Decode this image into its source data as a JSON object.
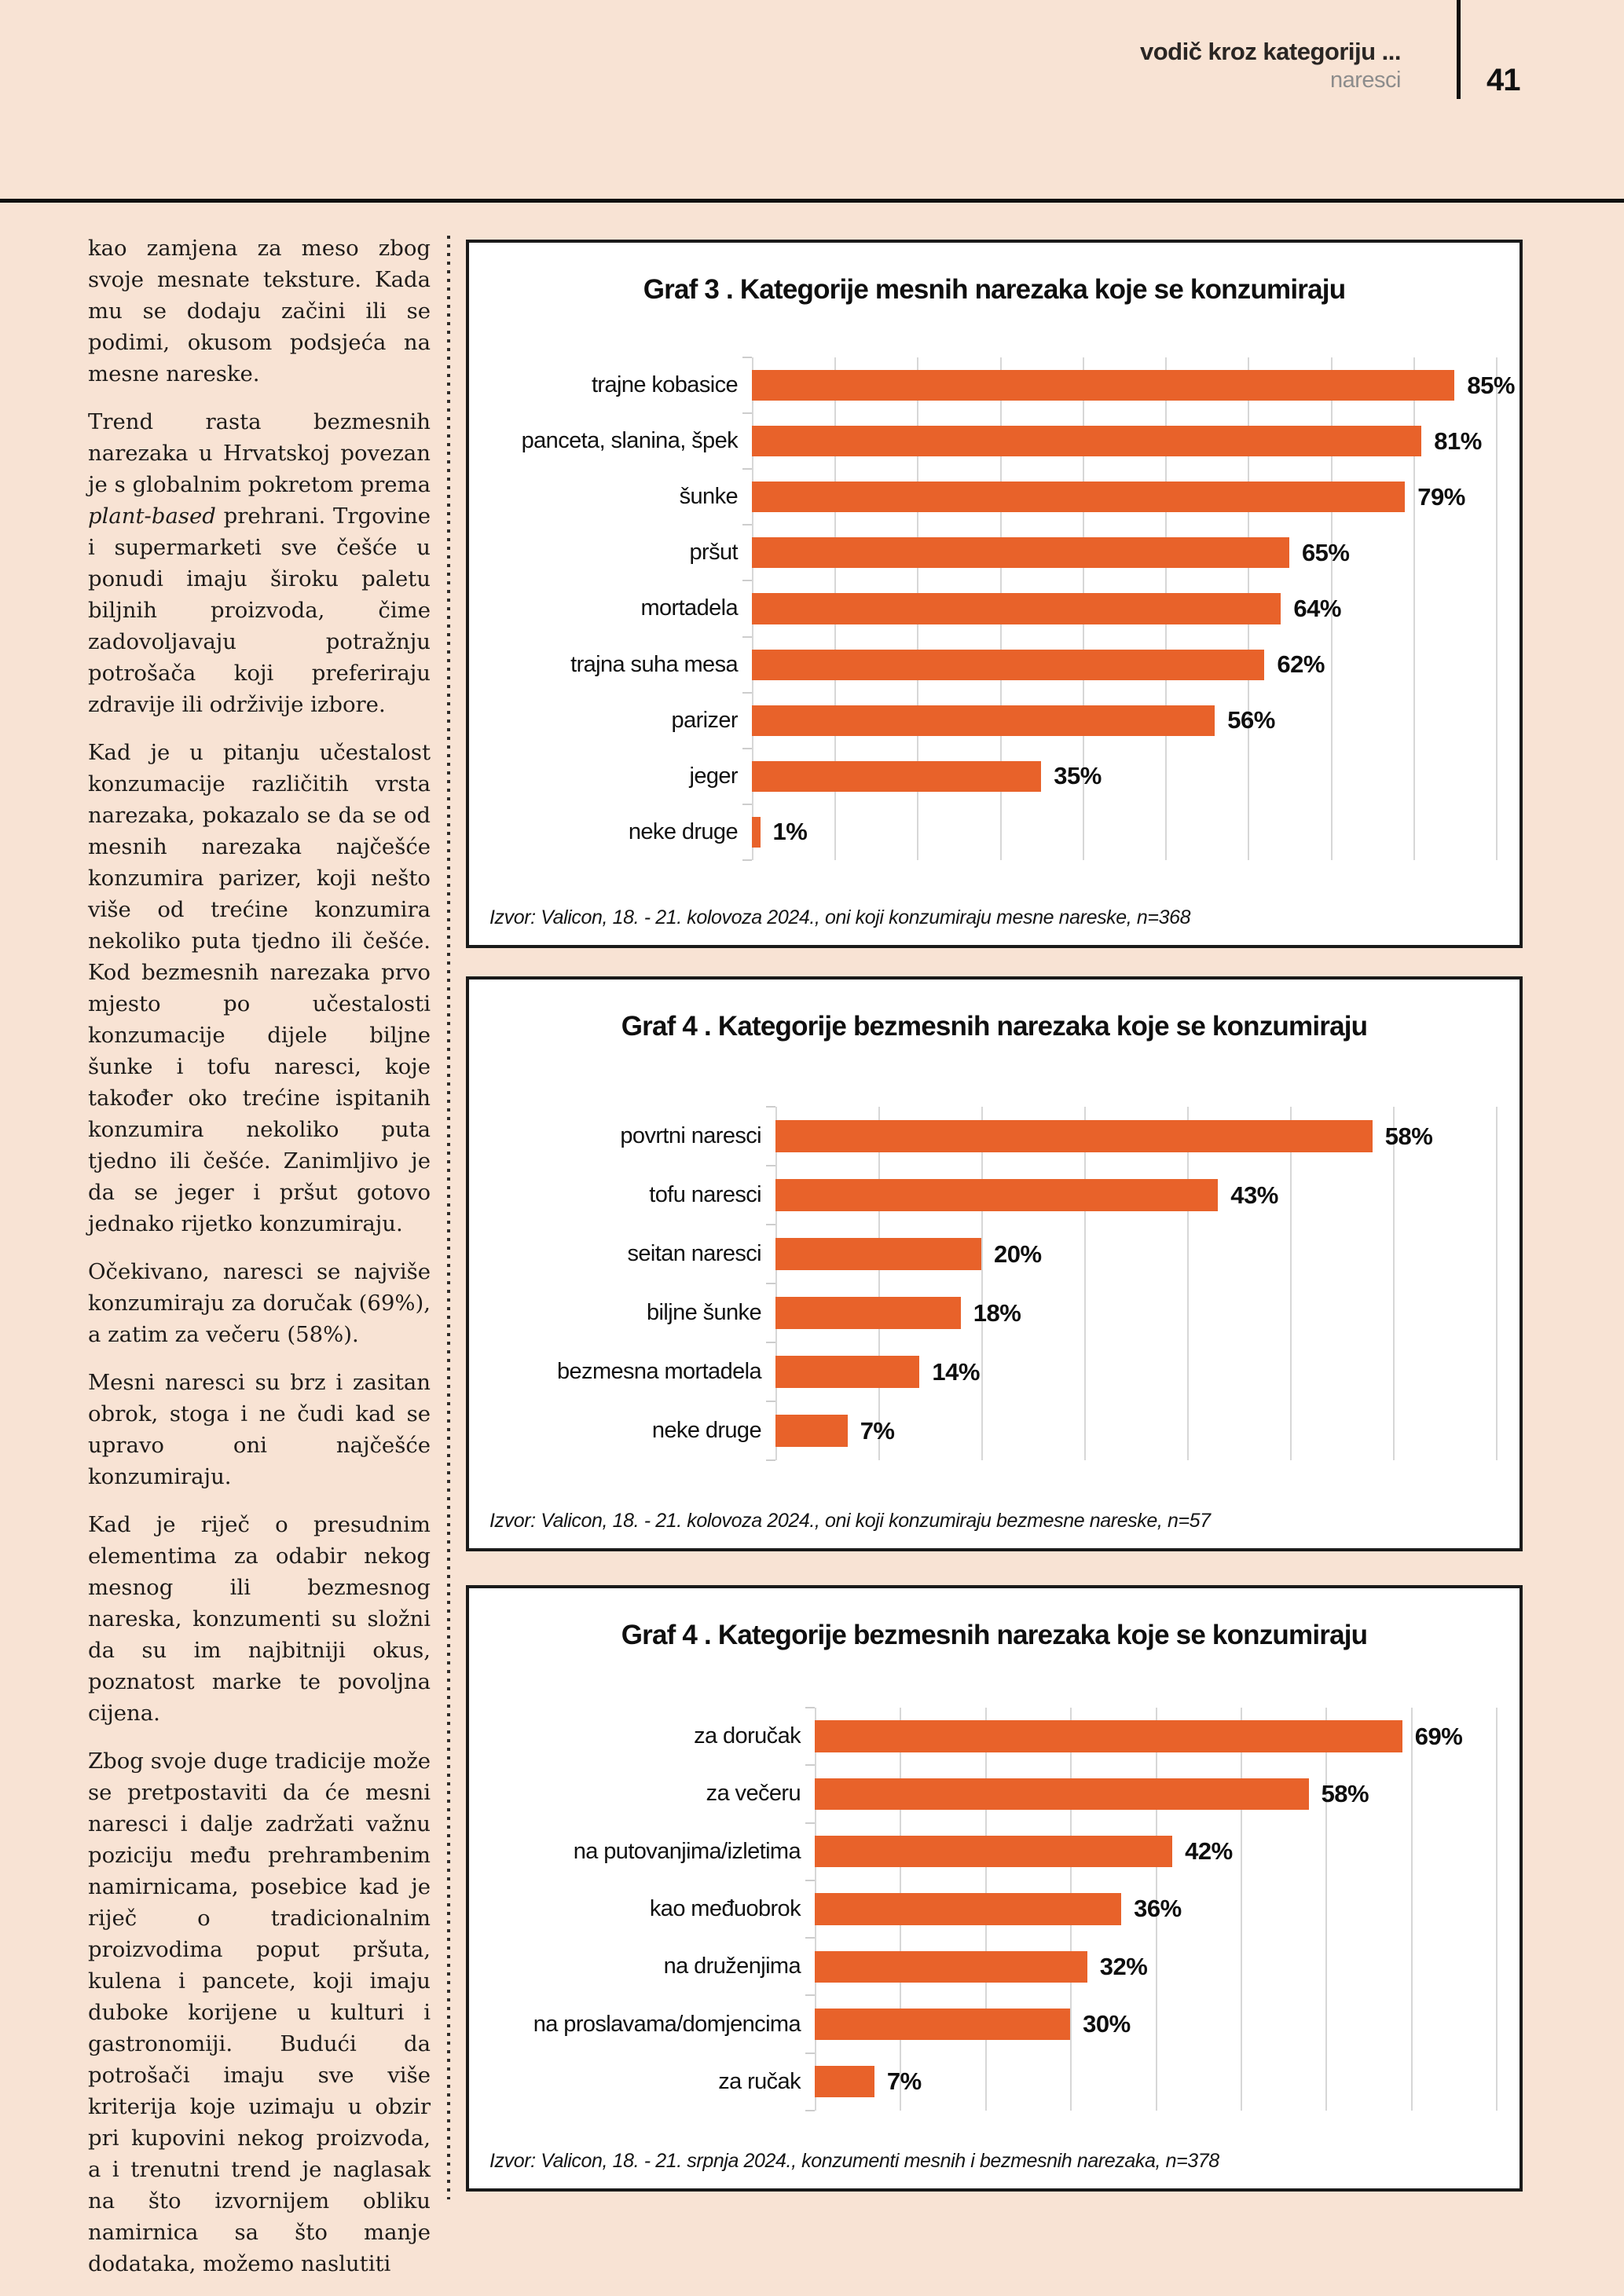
{
  "header": {
    "title": "vodič kroz kategoriju ...",
    "subtitle": "naresci",
    "page_number": "41"
  },
  "colors": {
    "page_background": "#F8E3D4",
    "bar_orange": "#E8622A",
    "chart_border": "#1A1A1A",
    "gridline": "#D7D7D7",
    "subtitle_grey": "#8C8C8C"
  },
  "article": {
    "p1": "kao zamjena za meso zbog svoje mesnate teksture. Kada mu se dodaju začini ili se podimi, okusom podsjeća na mesne nareske.",
    "p2_before": "Trend rasta bezmesnih narezaka u Hrvatskoj povezan je s globalnim pokretom prema ",
    "p2_italic": "plant-based",
    "p2_after": " prehrani. Trgovine i supermarketi sve češće u ponudi imaju široku paletu biljnih proizvoda, čime zadovoljavaju potražnju potrošača koji preferiraju zdravije ili održivije izbore.",
    "p3": "Kad je u pitanju učestalost konzumacije različitih vrsta narezaka, pokazalo se da se od mesnih narezaka najčešće konzumira parizer, koji nešto više od trećine konzumira nekoliko puta tjedno ili češće. Kod bezmesnih narezaka prvo mjesto po učestalosti konzumacije dijele biljne šunke i tofu naresci, koje također oko trećine ispitanih konzumira nekoliko puta tjedno ili češće. Zanimljivo je da se jeger i pršut gotovo jednako rijetko konzumiraju.",
    "p4": "Očekivano, naresci se najviše konzumiraju za doručak (69%), a zatim za večeru (58%).",
    "p5": "Mesni naresci su brz i zasitan obrok, stoga i ne čudi kad se upravo oni najčešće konzumiraju.",
    "p6": "Kad je riječ o presudnim elementima za odabir nekog mesnog ili bezmesnog nareska, konzumenti su složni da su im najbitniji okus, poznatost marke te povoljna cijena.",
    "p7": "Zbog svoje duge tradicije može se pretpostaviti da će mesni naresci i dalje zadržati važnu poziciju među prehrambenim namirnicama, posebice kad je riječ o tradicionalnim proizvodima poput pršuta, kulena i pancete, koji imaju duboke korijene u kulturi i gastronomiji. Budući da potrošači imaju sve više kriterija koje uzimaju u obzir pri kupovini nekog proizvoda, a i trenutni trend je naglasak na što izvornijem obliku namirnica sa što manje dodataka, možemo naslutiti"
  },
  "chart_data": [
    {
      "type": "bar",
      "title": "Graf 3 . Kategorije mesnih narezaka koje se konzumiraju",
      "categories": [
        "trajne kobasice",
        "panceta, slanina, špek",
        "šunke",
        "pršut",
        "mortadela",
        "trajna suha mesa",
        "parizer",
        "jeger",
        "neke druge"
      ],
      "values": [
        85,
        81,
        79,
        65,
        64,
        62,
        56,
        35,
        1
      ],
      "value_suffix": "%",
      "xlim": [
        0,
        90
      ],
      "grid_step": 10,
      "grid": true,
      "legend": "none",
      "source": "Izvor: Valicon, 18. - 21. kolovoza 2024., oni koji konzumiraju mesne nareske, n=368"
    },
    {
      "type": "bar",
      "title": "Graf 4 . Kategorije bezmesnih narezaka koje se konzumiraju",
      "categories": [
        "povrtni naresci",
        "tofu naresci",
        "seitan naresci",
        "biljne šunke",
        "bezmesna mortadela",
        "neke druge"
      ],
      "values": [
        58,
        43,
        20,
        18,
        14,
        7
      ],
      "value_suffix": "%",
      "xlim": [
        0,
        70
      ],
      "grid_step": 10,
      "grid": true,
      "legend": "none",
      "source": "Izvor: Valicon, 18. - 21. kolovoza 2024., oni koji konzumiraju bezmesne nareske, n=57"
    },
    {
      "type": "bar",
      "title": "Graf 4 . Kategorije bezmesnih narezaka koje se konzumiraju",
      "categories": [
        "za doručak",
        "za večeru",
        "na putovanjima/izletima",
        "kao međuobrok",
        "na druženjima",
        "na proslavama/domjencima",
        "za ručak"
      ],
      "values": [
        69,
        58,
        42,
        36,
        32,
        30,
        7
      ],
      "value_suffix": "%",
      "xlim": [
        0,
        80
      ],
      "grid_step": 10,
      "grid": true,
      "legend": "none",
      "source": "Izvor: Valicon, 18. - 21. srpnja 2024., konzumenti mesnih i bezmesnih narezaka, n=378"
    }
  ]
}
